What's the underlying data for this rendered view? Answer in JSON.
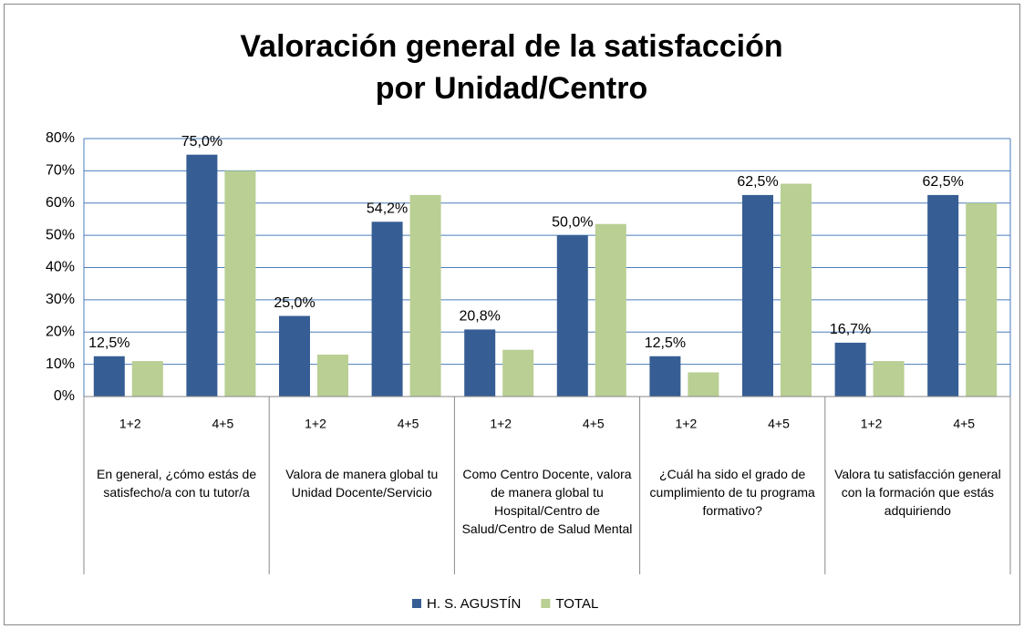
{
  "chart_data": {
    "type": "bar",
    "title": "Valoración general de la satisfacción por Unidad/Centro",
    "categories": [
      "1+2",
      "4+5",
      "1+2",
      "4+5",
      "1+2",
      "4+5",
      "1+2",
      "4+5",
      "1+2",
      "4+5"
    ],
    "groups": [
      "En general, ¿cómo estás de satisfecho/a con tu tutor/a",
      "Valora de manera global tu Unidad Docente/Servicio",
      "Como Centro Docente, valora de manera global tu Hospital/Centro de Salud/Centro de Salud Mental",
      "¿Cuál ha sido el grado de cumplimiento de tu programa formativo?",
      "Valora tu satisfacción general con la formación que estás adquiriendo"
    ],
    "series": [
      {
        "name": "H. S. AGUSTÍN",
        "color": "#375e94",
        "values": [
          12.5,
          75.0,
          25.0,
          54.2,
          20.8,
          50.0,
          12.5,
          62.5,
          16.7,
          62.5
        ],
        "value_labels": [
          "12,5%",
          "75,0%",
          "25,0%",
          "54,2%",
          "20,8%",
          "50,0%",
          "12,5%",
          "62,5%",
          "16,7%",
          "62,5%"
        ]
      },
      {
        "name": "TOTAL",
        "color": "#b9cf93",
        "values": [
          11,
          70,
          13,
          62.5,
          14.5,
          53.5,
          7.5,
          66,
          11,
          60
        ]
      }
    ],
    "ylim": [
      0,
      80
    ],
    "yticks": [
      {
        "value": 0,
        "label": "0%"
      },
      {
        "value": 10,
        "label": "10%"
      },
      {
        "value": 20,
        "label": "20%"
      },
      {
        "value": 30,
        "label": "30%"
      },
      {
        "value": 40,
        "label": "40%"
      },
      {
        "value": 50,
        "label": "50%"
      },
      {
        "value": 60,
        "label": "60%"
      },
      {
        "value": 70,
        "label": "70%"
      },
      {
        "value": 80,
        "label": "80%"
      }
    ],
    "grid": true,
    "legend": "bottom"
  }
}
